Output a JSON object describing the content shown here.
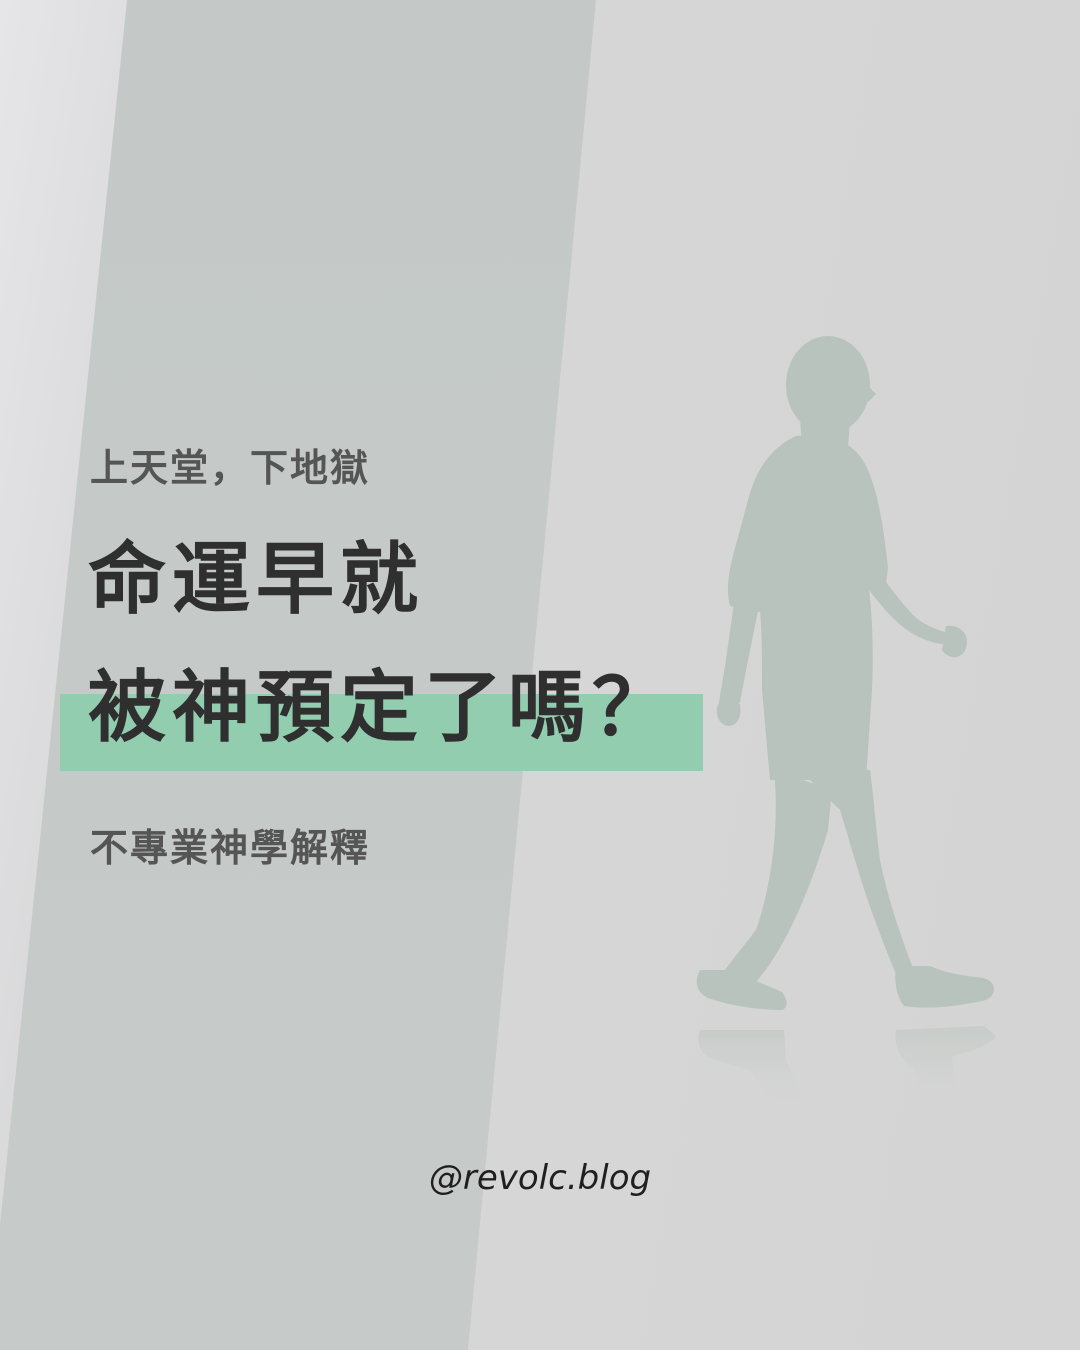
{
  "poster": {
    "kicker": "上天堂，下地獄",
    "headline_line1": "命運早就",
    "headline_line2": "被神預定了嗎？",
    "subtitle": "不專業神學解釋",
    "handle": "@revolc.blog"
  },
  "colors": {
    "background": "#d6d6d6",
    "light_beam": "#c4c9c7",
    "highlight": "#93cdb0",
    "silhouette": "#b9c3bd",
    "headline_text": "#2f2f2f",
    "secondary_text": "#555555"
  },
  "icons": {
    "figure": "walking-man-silhouette"
  }
}
